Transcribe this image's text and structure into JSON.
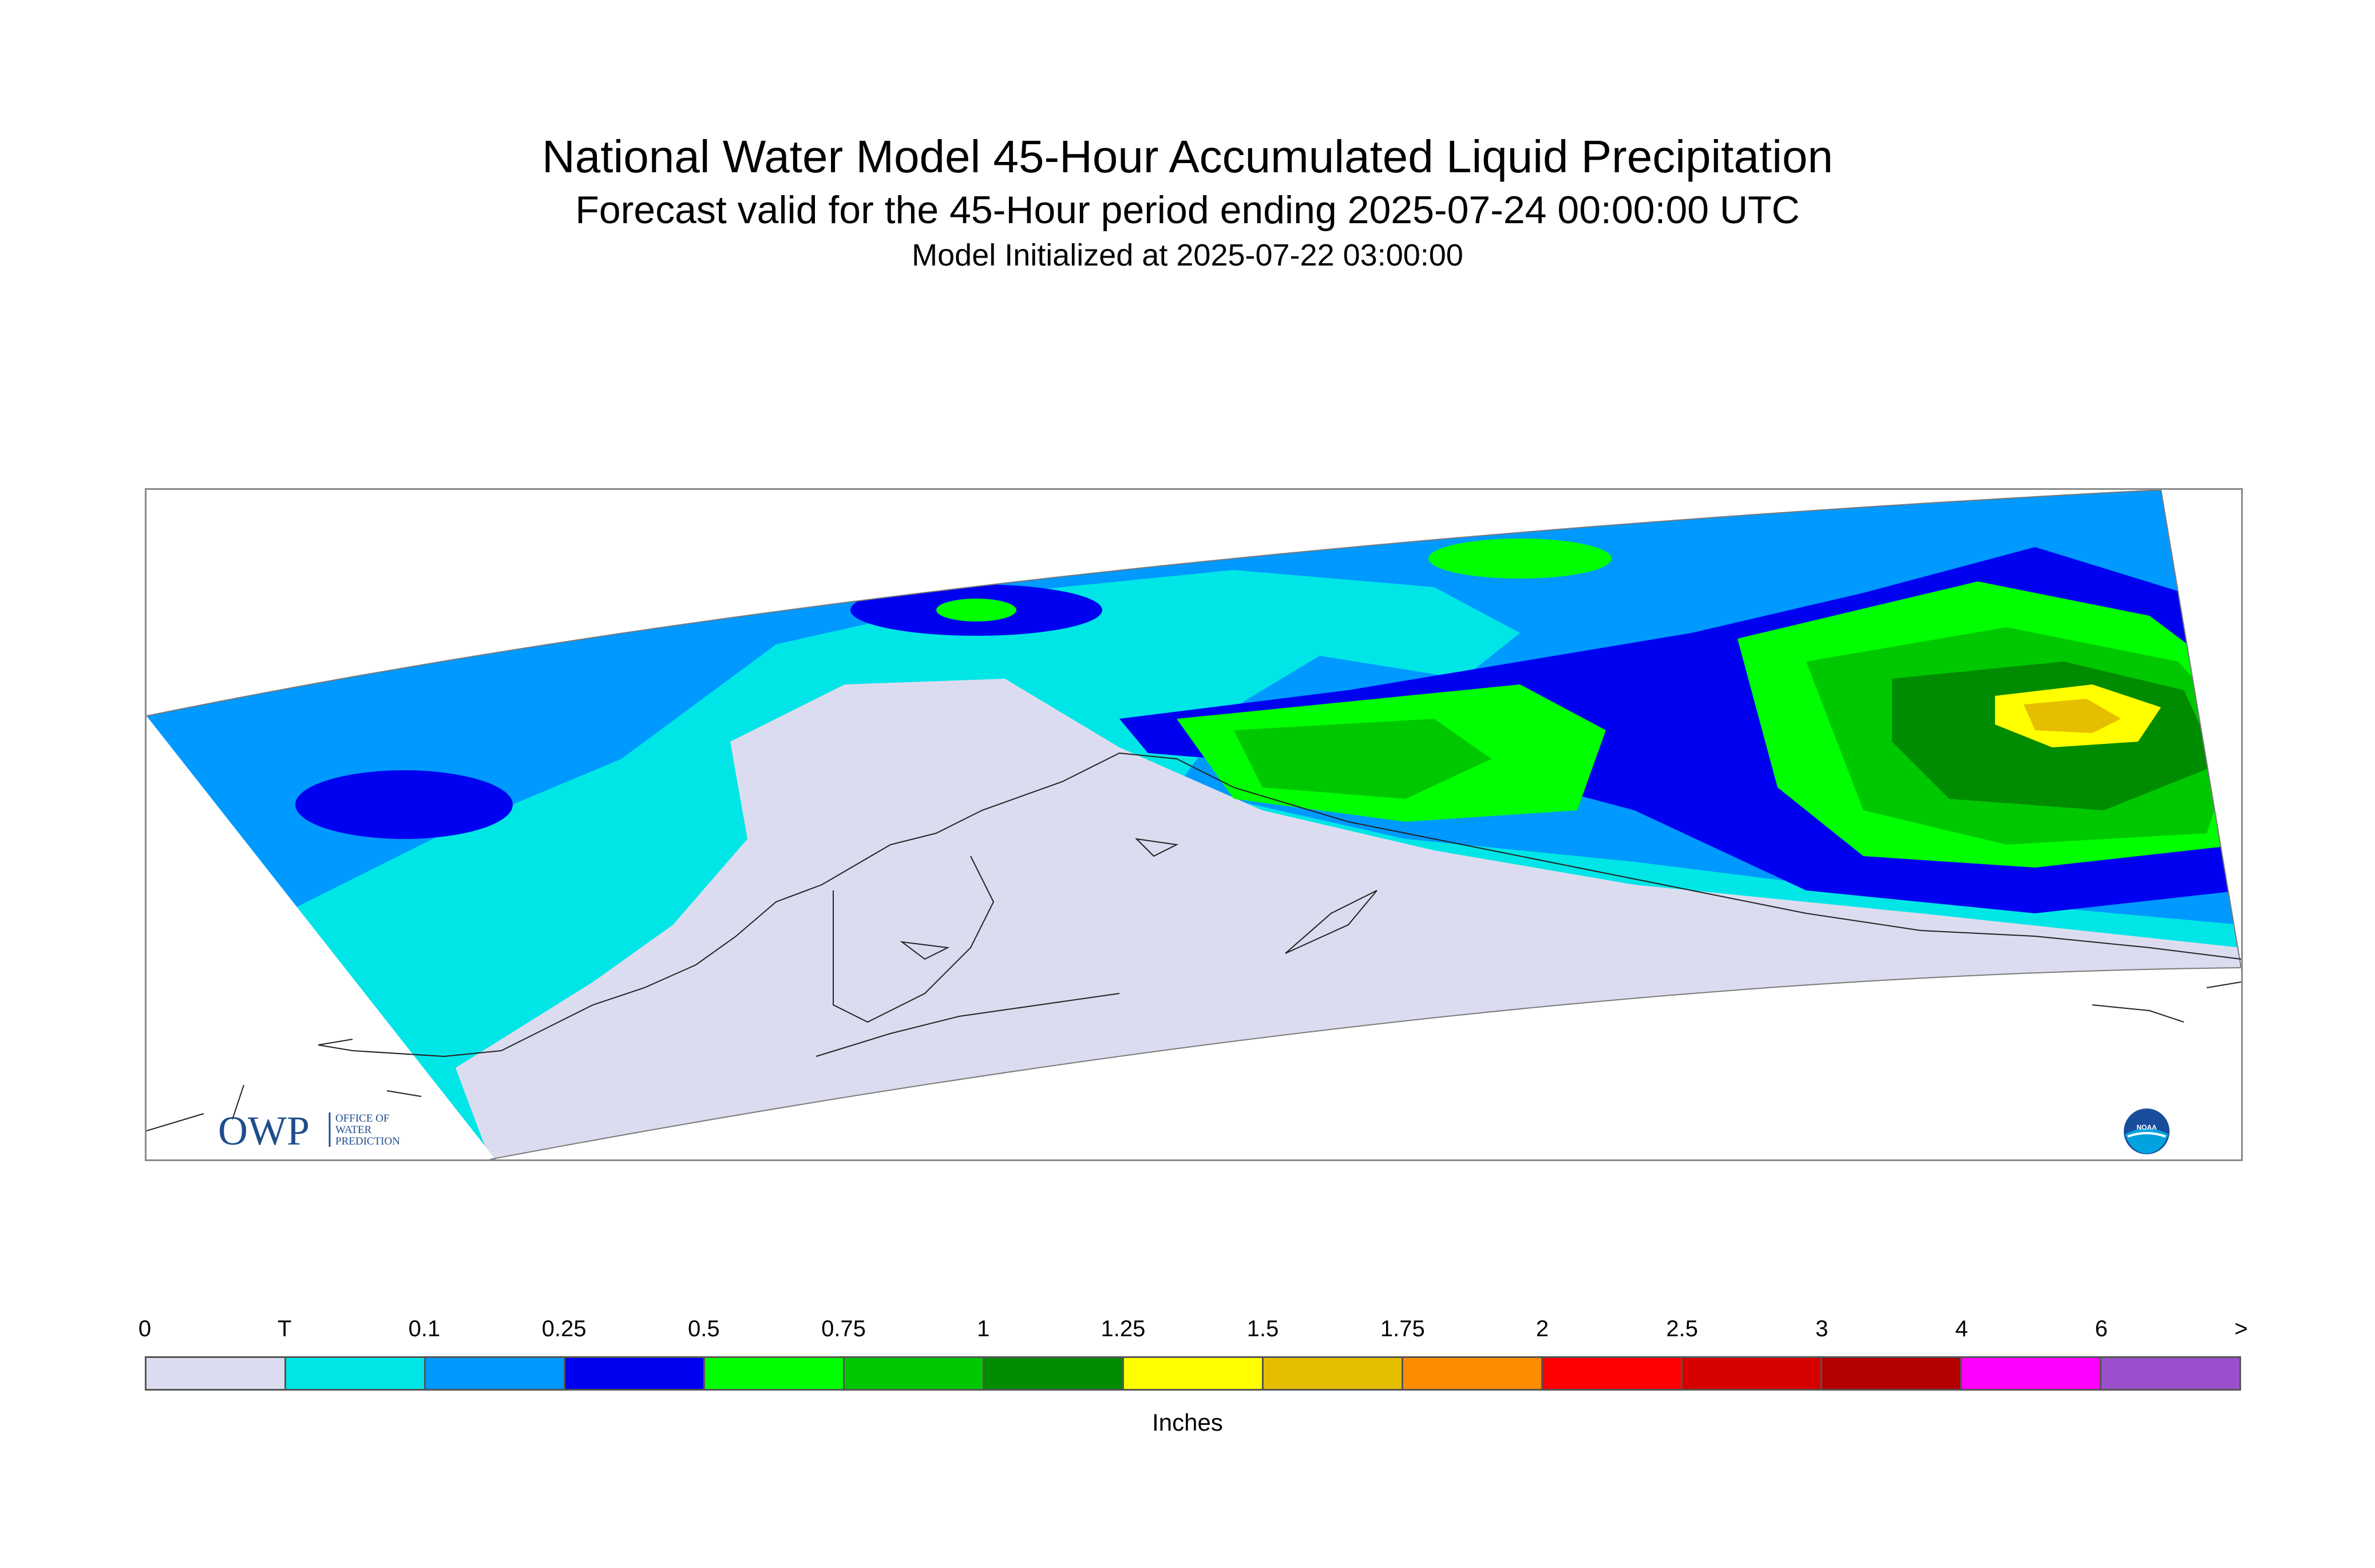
{
  "title": "National Water Model 45-Hour Accumulated Liquid Precipitation",
  "subtitle": "Forecast valid for the 45-Hour period ending 2025-07-24 00:00:00 UTC",
  "init": "Model Initialized at 2025-07-22 03:00:00",
  "logos": {
    "owp_main": "OWP",
    "owp_sub": [
      "OFFICE OF",
      "WATER",
      "PREDICTION"
    ],
    "noaa": "NOAA"
  },
  "legend": {
    "units": "Inches",
    "ticks": [
      "0",
      "T",
      "0.1",
      "0.25",
      "0.5",
      "0.75",
      "1",
      "1.25",
      "1.5",
      "1.75",
      "2",
      "2.5",
      "3",
      "4",
      "6",
      ">"
    ],
    "colors": [
      "#dcdcf0",
      "#00e6e6",
      "#0099ff",
      "#0000f0",
      "#00ff00",
      "#00c800",
      "#008c00",
      "#ffff00",
      "#e6be00",
      "#ff8c00",
      "#ff0000",
      "#d70000",
      "#b40000",
      "#ff00ff",
      "#9c4fcc",
      "#ffffff"
    ]
  }
}
